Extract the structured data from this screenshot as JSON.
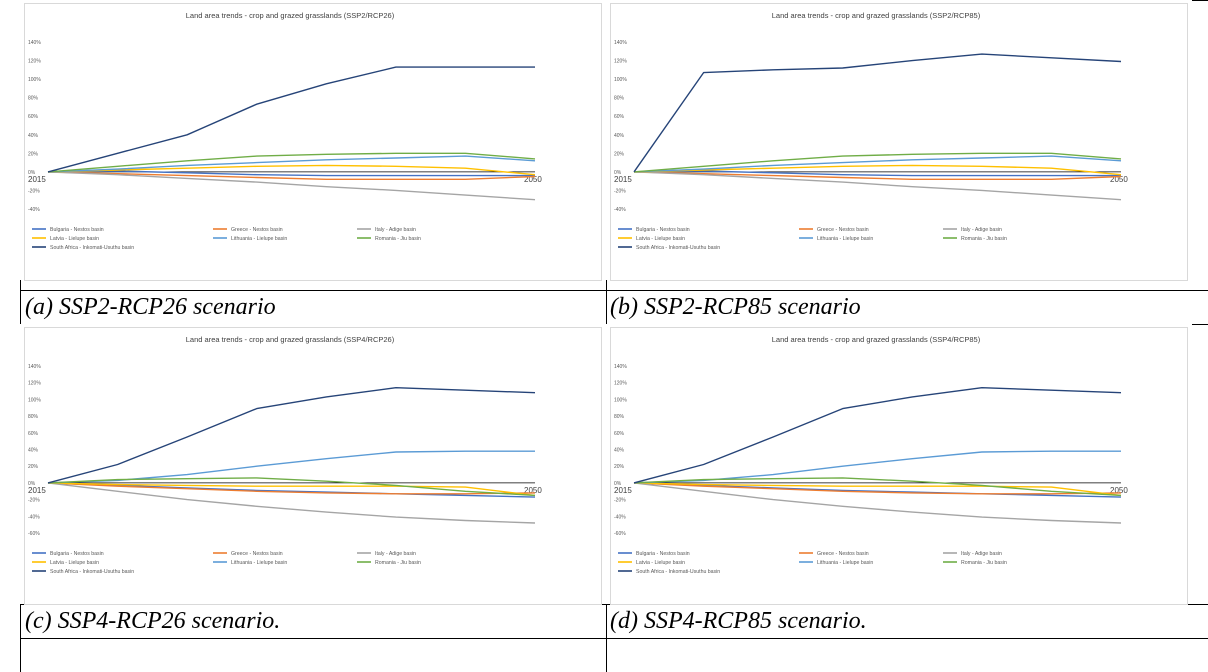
{
  "captions": [
    "(a) SSP2-RCP26 scenario",
    "(b) SSP2-RCP85 scenario",
    "(c) SSP4-RCP26 scenario.",
    "(d) SSP4-RCP85 scenario."
  ],
  "series_colors": {
    "Bulgaria - Nestos basin": "#4472c4",
    "Greece - Nestos basin": "#ed7d31",
    "Italy - Adige basin": "#a5a5a5",
    "Latvia - Lielupe basin": "#ffc000",
    "Lithuania - Lielupe basin": "#5b9bd5",
    "Romania - Jiu basin": "#70ad47",
    "South Africa - Inkomati-Usuthu basin": "#264478"
  },
  "chart_data": [
    {
      "type": "line",
      "title": "Land area trends - crop and grazed grasslands (SSP2/RCP26)",
      "x": [
        2015,
        2020,
        2025,
        2030,
        2035,
        2040,
        2045,
        2050
      ],
      "x_tick_labels": [
        "2015",
        "2050"
      ],
      "y_tick_labels": [
        "-40%",
        "-20%",
        "0%",
        "20%",
        "40%",
        "60%",
        "80%",
        "100%",
        "120%",
        "140%"
      ],
      "ylim": [
        -40,
        140
      ],
      "legend": "bottom",
      "series": [
        {
          "name": "Bulgaria - Nestos basin",
          "values": [
            0,
            1,
            -1,
            -3,
            -4,
            -4,
            -4,
            -4
          ]
        },
        {
          "name": "Greece - Nestos basin",
          "values": [
            0,
            -2,
            -4,
            -6,
            -8,
            -8,
            -8,
            -5
          ]
        },
        {
          "name": "Italy - Adige basin",
          "values": [
            0,
            -3,
            -7,
            -11,
            -16,
            -20,
            -25,
            -30
          ]
        },
        {
          "name": "Latvia - Lielupe basin",
          "values": [
            0,
            2,
            4,
            6,
            7,
            6,
            4,
            -3
          ]
        },
        {
          "name": "Lithuania - Lielupe basin",
          "values": [
            0,
            3,
            7,
            10,
            13,
            15,
            17,
            12
          ]
        },
        {
          "name": "Romania - Jiu basin",
          "values": [
            0,
            6,
            12,
            17,
            19,
            20,
            20,
            14
          ]
        },
        {
          "name": "South Africa - Inkomati-Usuthu basin",
          "values": [
            0,
            20,
            40,
            73,
            95,
            113,
            113,
            113
          ]
        }
      ]
    },
    {
      "type": "line",
      "title": "Land area trends - crop and grazed grasslands (SSP2/RCP85)",
      "x": [
        2015,
        2020,
        2025,
        2030,
        2035,
        2040,
        2045,
        2050
      ],
      "x_tick_labels": [
        "2015",
        "2050"
      ],
      "y_tick_labels": [
        "-40%",
        "-20%",
        "0%",
        "20%",
        "40%",
        "60%",
        "80%",
        "100%",
        "120%",
        "140%"
      ],
      "ylim": [
        -40,
        140
      ],
      "legend": "bottom",
      "series": [
        {
          "name": "Bulgaria - Nestos basin",
          "values": [
            0,
            1,
            -1,
            -3,
            -4,
            -4,
            -4,
            -4
          ]
        },
        {
          "name": "Greece - Nestos basin",
          "values": [
            0,
            -2,
            -4,
            -6,
            -8,
            -8,
            -8,
            -5
          ]
        },
        {
          "name": "Italy - Adige basin",
          "values": [
            0,
            -3,
            -7,
            -11,
            -16,
            -20,
            -25,
            -30
          ]
        },
        {
          "name": "Latvia - Lielupe basin",
          "values": [
            0,
            2,
            4,
            6,
            7,
            6,
            4,
            -3
          ]
        },
        {
          "name": "Lithuania - Lielupe basin",
          "values": [
            0,
            3,
            7,
            10,
            13,
            15,
            17,
            12
          ]
        },
        {
          "name": "Romania - Jiu basin",
          "values": [
            0,
            6,
            12,
            17,
            19,
            20,
            20,
            14
          ]
        },
        {
          "name": "South Africa - Inkomati-Usuthu basin",
          "values": [
            0,
            107,
            110,
            112,
            120,
            127,
            123,
            119
          ]
        }
      ]
    },
    {
      "type": "line",
      "title": "Land area trends - crop and grazed grasslands (SSP4/RCP26)",
      "x": [
        2015,
        2020,
        2025,
        2030,
        2035,
        2040,
        2045,
        2050
      ],
      "x_tick_labels": [
        "2015",
        "2050"
      ],
      "y_tick_labels": [
        "-60%",
        "-40%",
        "-20%",
        "0%",
        "20%",
        "40%",
        "60%",
        "80%",
        "100%",
        "120%",
        "140%"
      ],
      "ylim": [
        -60,
        140
      ],
      "legend": "bottom",
      "series": [
        {
          "name": "Bulgaria - Nestos basin",
          "values": [
            0,
            -3,
            -6,
            -9,
            -11,
            -13,
            -15,
            -17
          ]
        },
        {
          "name": "Greece - Nestos basin",
          "values": [
            0,
            -4,
            -7,
            -10,
            -12,
            -13,
            -13,
            -12
          ]
        },
        {
          "name": "Italy - Adige basin",
          "values": [
            0,
            -10,
            -20,
            -28,
            -35,
            -41,
            -45,
            -48
          ]
        },
        {
          "name": "Latvia - Lielupe basin",
          "values": [
            0,
            -2,
            -3,
            -4,
            -4,
            -4,
            -5,
            -15
          ]
        },
        {
          "name": "Lithuania - Lielupe basin",
          "values": [
            0,
            3,
            10,
            20,
            29,
            37,
            38,
            38
          ]
        },
        {
          "name": "Romania - Jiu basin",
          "values": [
            0,
            4,
            5,
            6,
            2,
            -3,
            -10,
            -15
          ]
        },
        {
          "name": "South Africa - Inkomati-Usuthu basin",
          "values": [
            0,
            22,
            55,
            89,
            103,
            114,
            111,
            108
          ]
        }
      ]
    },
    {
      "type": "line",
      "title": "Land area trends - crop and grazed grasslands (SSP4/RCP85)",
      "x": [
        2015,
        2020,
        2025,
        2030,
        2035,
        2040,
        2045,
        2050
      ],
      "x_tick_labels": [
        "2015",
        "2050"
      ],
      "y_tick_labels": [
        "-60%",
        "-40%",
        "-20%",
        "0%",
        "20%",
        "40%",
        "60%",
        "80%",
        "100%",
        "120%",
        "140%"
      ],
      "ylim": [
        -60,
        140
      ],
      "legend": "bottom",
      "series": [
        {
          "name": "Bulgaria - Nestos basin",
          "values": [
            0,
            -3,
            -6,
            -9,
            -11,
            -13,
            -15,
            -17
          ]
        },
        {
          "name": "Greece - Nestos basin",
          "values": [
            0,
            -4,
            -7,
            -10,
            -12,
            -13,
            -13,
            -12
          ]
        },
        {
          "name": "Italy - Adige basin",
          "values": [
            0,
            -10,
            -20,
            -28,
            -35,
            -41,
            -45,
            -48
          ]
        },
        {
          "name": "Latvia - Lielupe basin",
          "values": [
            0,
            -2,
            -3,
            -4,
            -4,
            -4,
            -5,
            -15
          ]
        },
        {
          "name": "Lithuania - Lielupe basin",
          "values": [
            0,
            3,
            10,
            20,
            29,
            37,
            38,
            38
          ]
        },
        {
          "name": "Romania - Jiu basin",
          "values": [
            0,
            4,
            5,
            6,
            2,
            -3,
            -10,
            -15
          ]
        },
        {
          "name": "South Africa - Inkomati-Usuthu basin",
          "values": [
            0,
            22,
            55,
            89,
            103,
            114,
            111,
            108
          ]
        }
      ]
    }
  ]
}
